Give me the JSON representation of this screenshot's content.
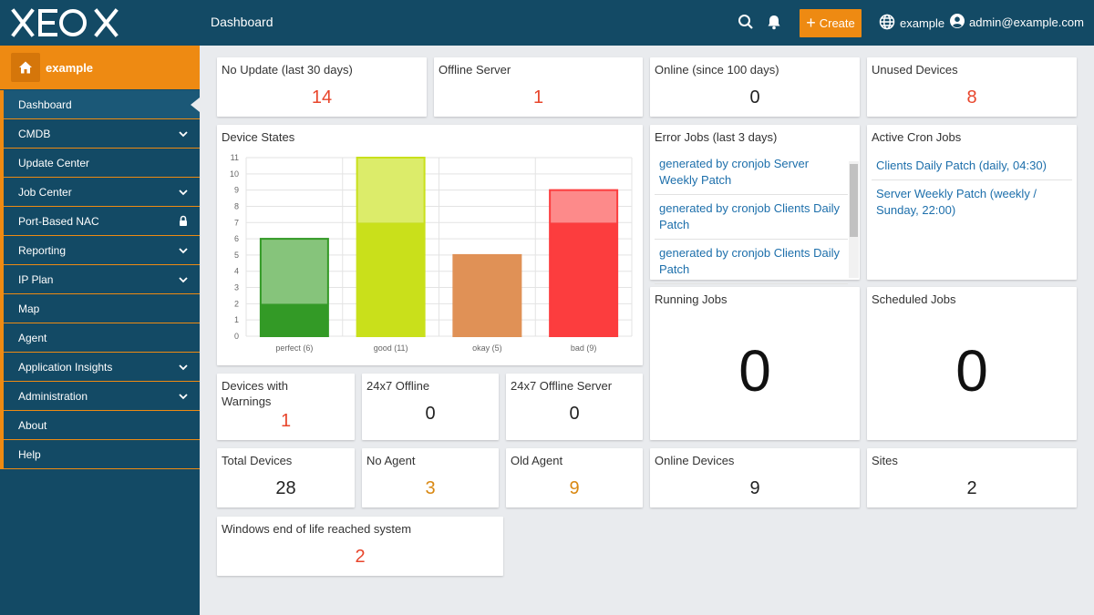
{
  "header": {
    "logo": "XEOX",
    "page_title": "Dashboard",
    "create_label": "Create",
    "tenant": "example",
    "user": "admin@example.com",
    "icons": [
      "search-icon",
      "bell-icon",
      "globe-icon",
      "user-circle-icon"
    ]
  },
  "sidebar": {
    "home_label": "example",
    "items": [
      {
        "label": "Dashboard",
        "active": true
      },
      {
        "label": "CMDB",
        "chevron": true
      },
      {
        "label": "Update Center"
      },
      {
        "label": "Job Center",
        "chevron": true
      },
      {
        "label": "Port-Based NAC",
        "lock": true
      },
      {
        "label": "Reporting",
        "chevron": true
      },
      {
        "label": "IP Plan",
        "chevron": true
      },
      {
        "label": "Map"
      },
      {
        "label": "Agent"
      },
      {
        "label": "Application Insights",
        "chevron": true
      },
      {
        "label": "Administration",
        "chevron": true
      },
      {
        "label": "About"
      },
      {
        "label": "Help"
      }
    ]
  },
  "cards": {
    "no_update": {
      "title": "No Update (last 30 days)",
      "value": "14"
    },
    "offline_server": {
      "title": "Offline Server",
      "value": "1"
    },
    "online_since": {
      "title": "Online (since 100 days)",
      "value": "0"
    },
    "unused_devices": {
      "title": "Unused Devices",
      "value": "8"
    },
    "device_states": {
      "title": "Device States"
    },
    "error_jobs": {
      "title": "Error Jobs (last 3 days)",
      "items": [
        "generated by cronjob Server Weekly Patch",
        "generated by cronjob Clients Daily Patch",
        "generated by cronjob Clients Daily Patch"
      ]
    },
    "active_cron": {
      "title": "Active Cron Jobs",
      "items": [
        "Clients Daily Patch (daily, 04:30)",
        "Server Weekly Patch (weekly / Sunday, 22:00)"
      ]
    },
    "running_jobs": {
      "title": "Running Jobs",
      "value": "0"
    },
    "scheduled_jobs": {
      "title": "Scheduled Jobs",
      "value": "0"
    },
    "devices_warnings": {
      "title": "Devices with Warnings",
      "value": "1"
    },
    "offline_247": {
      "title": "24x7 Offline",
      "value": "0"
    },
    "offline_server_247": {
      "title": "24x7 Offline Server",
      "value": "0"
    },
    "total_devices": {
      "title": "Total Devices",
      "value": "28"
    },
    "no_agent": {
      "title": "No Agent",
      "value": "3"
    },
    "old_agent": {
      "title": "Old Agent",
      "value": "9"
    },
    "online_devices": {
      "title": "Online Devices",
      "value": "9"
    },
    "sites": {
      "title": "Sites",
      "value": "2"
    },
    "windows_eol": {
      "title": "Windows end of life reached system",
      "value": "2"
    }
  },
  "chart_data": {
    "type": "bar",
    "title": "Device States",
    "categories": [
      "perfect (6)",
      "good (11)",
      "okay (5)",
      "bad (9)"
    ],
    "values": [
      6,
      11,
      5,
      9
    ],
    "stack_split": [
      2,
      7,
      5,
      7
    ],
    "colors": {
      "perfect": {
        "dark": "#339a26",
        "light": "#86c47b"
      },
      "good": {
        "dark": "#c9e01b",
        "light": "#dcec6a"
      },
      "okay": {
        "dark": "#e09156",
        "light": "#e09156"
      },
      "bad": {
        "dark": "#fc3d3e",
        "light": "#fd8a8a"
      }
    },
    "ylim": [
      0,
      11
    ],
    "yticks": [
      0,
      1,
      2,
      3,
      4,
      5,
      6,
      7,
      8,
      9,
      10,
      11
    ],
    "grid": true
  }
}
